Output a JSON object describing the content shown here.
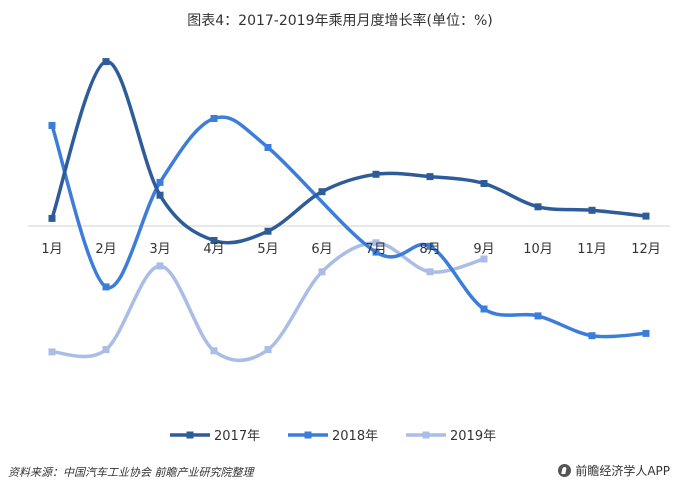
{
  "chart_data": {
    "type": "line",
    "title": "图表4：2017-2019年乘用月度增长率(单位：%)",
    "categories": [
      "1月",
      "2月",
      "3月",
      "4月",
      "5月",
      "6月",
      "7月",
      "8月",
      "9月",
      "10月",
      "11月",
      "12月"
    ],
    "series": [
      {
        "name": "2017年",
        "color": "#2e5c99",
        "values": [
          -0.5,
          13.0,
          1.5,
          -2.4,
          -1.6,
          1.8,
          3.3,
          3.1,
          2.5,
          0.5,
          0.2,
          -0.3
        ]
      },
      {
        "name": "2018年",
        "color": "#3c7dd9",
        "values": [
          7.5,
          -6.4,
          2.6,
          8.1,
          5.6,
          null,
          -3.4,
          -2.9,
          -8.3,
          -8.9,
          -10.6,
          -10.4
        ]
      },
      {
        "name": "2019年",
        "color": "#a9bde6",
        "values": [
          -12.0,
          -11.8,
          -4.6,
          -11.9,
          -11.8,
          -5.1,
          -2.6,
          -5.1,
          -4.0,
          null,
          null,
          null
        ]
      }
    ],
    "ylim": [
      -17,
      14
    ],
    "grid": false,
    "legend": "bottom"
  },
  "footer": {
    "source": "资料来源：中国汽车工业协会 前瞻产业研究院整理",
    "brand": "前瞻经济学人APP"
  }
}
